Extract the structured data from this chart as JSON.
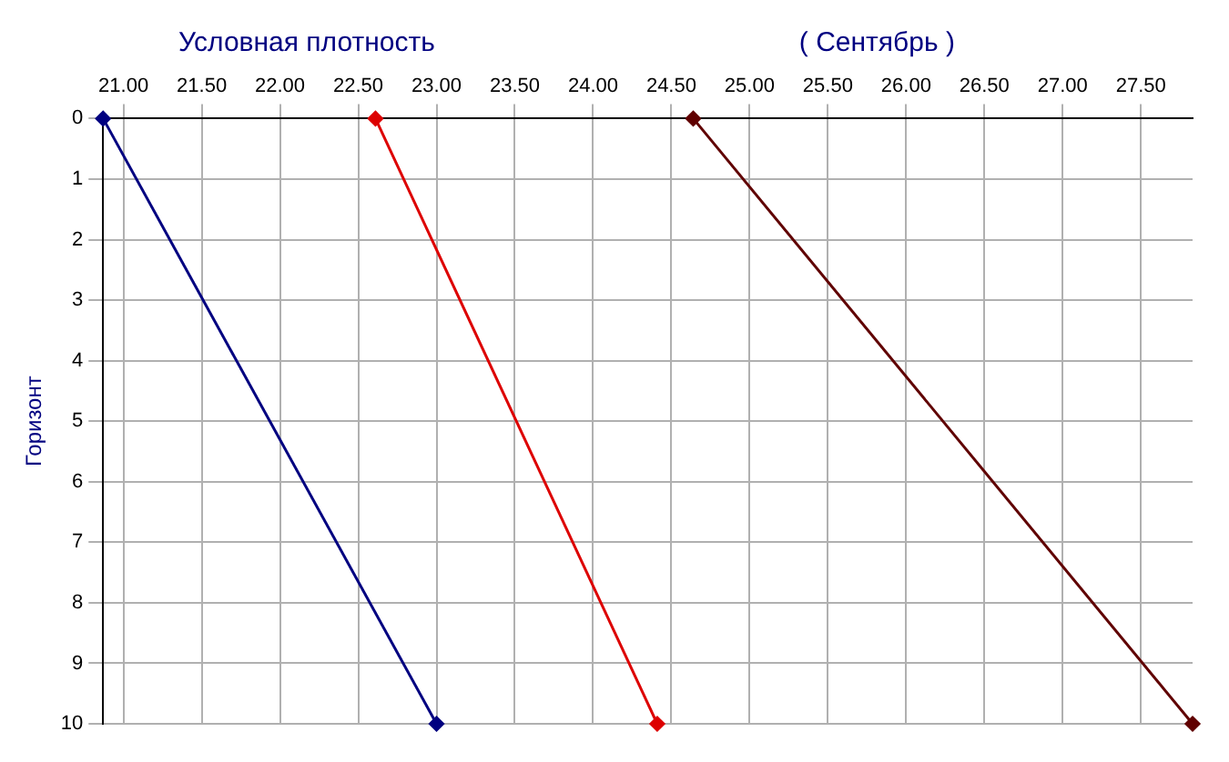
{
  "chart_data": {
    "type": "line",
    "title": "Условная плотность",
    "subtitle": "( Сентябрь )",
    "ylabel": "Горизонт",
    "series": [
      {
        "color": "#000080",
        "x": [
          20.87,
          23.0
        ],
        "values": [
          0,
          10
        ]
      },
      {
        "color": "#dd0000",
        "x": [
          22.61,
          24.41
        ],
        "values": [
          0,
          10
        ]
      },
      {
        "color": "#600000",
        "x": [
          24.64,
          27.83
        ],
        "values": [
          0,
          10
        ]
      }
    ],
    "xlim": [
      20.87,
      27.83
    ],
    "xticks": [
      {
        "value": 21,
        "label": "21.00"
      },
      {
        "value": 21.5,
        "label": "21.50"
      },
      {
        "value": 22,
        "label": "22.00"
      },
      {
        "value": 22.5,
        "label": "22.50"
      },
      {
        "value": 23,
        "label": "23.00"
      },
      {
        "value": 23.5,
        "label": "23.50"
      },
      {
        "value": 24,
        "label": "24.00"
      },
      {
        "value": 24.5,
        "label": "24.50"
      },
      {
        "value": 25,
        "label": "25.00"
      },
      {
        "value": 25.5,
        "label": "25.50"
      },
      {
        "value": 26,
        "label": "26.00"
      },
      {
        "value": 26.5,
        "label": "26.50"
      },
      {
        "value": 27,
        "label": "27.00"
      },
      {
        "value": 27.5,
        "label": "27.50"
      }
    ],
    "ylim": [
      10,
      0
    ],
    "yticks": [
      0,
      1,
      2,
      3,
      4,
      5,
      6,
      7,
      8,
      9,
      10
    ],
    "grid": true,
    "marker": "diamond",
    "line_style": "solid",
    "legend": false
  }
}
